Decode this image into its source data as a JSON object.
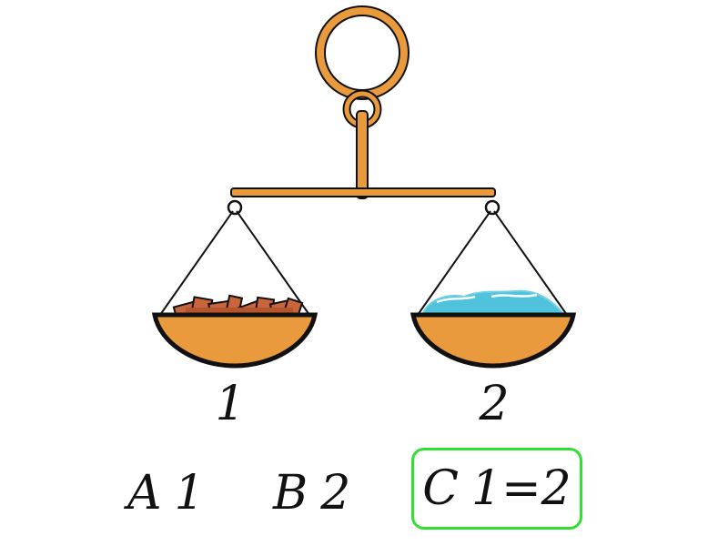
{
  "scale": {
    "left_pan_label": "1",
    "right_pan_label": "2",
    "left_pan_contents": "wood-pieces",
    "right_pan_contents": "water",
    "tilt": "balanced"
  },
  "options": [
    {
      "letter": "A",
      "value": "1",
      "selected": false
    },
    {
      "letter": "B",
      "value": "2",
      "selected": false
    },
    {
      "letter": "C",
      "value": "1=2",
      "selected": true
    }
  ],
  "colors": {
    "metal": "#e89a3c",
    "outline": "#111111",
    "water": "#4fc3dc",
    "wood": "#c8653a",
    "selection": "#33dd33"
  }
}
